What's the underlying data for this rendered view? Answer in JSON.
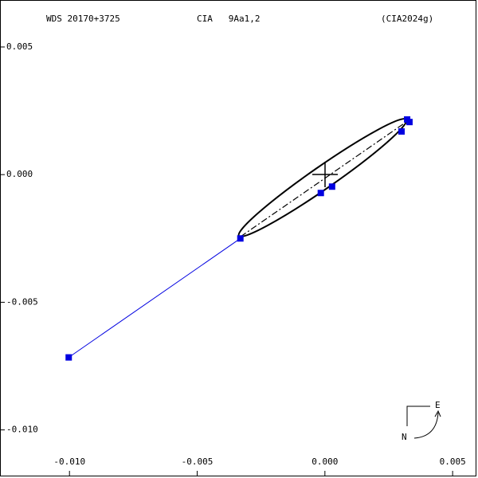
{
  "chart_data": {
    "type": "scatter",
    "title": "WDS 20170+3725",
    "subtitle": "CIA   9Aa1,2",
    "reference": "(CIA2024g)",
    "compass_east": "E",
    "compass_north": "N",
    "color": "#0000e0",
    "x": [
      -0.01003,
      -0.00331,
      -0.00016,
      0.00028,
      0.003,
      0.00322,
      0.00331
    ],
    "values": [
      -0.00716,
      -0.0025,
      -0.00072,
      -0.00047,
      0.00169,
      0.00216,
      0.00206
    ],
    "xlim": [
      -0.01272,
      0.0059
    ],
    "ylim": [
      -0.01179,
      0.00684
    ],
    "xticks": [
      {
        "value": -0.01,
        "label": "-0.010"
      },
      {
        "value": -0.005,
        "label": "-0.005"
      },
      {
        "value": 0,
        "label": "0.000"
      },
      {
        "value": 0.005,
        "label": "0.005"
      }
    ],
    "yticks": [
      {
        "value": 0.005,
        "label": "0.005"
      },
      {
        "value": 0,
        "label": "0.000"
      },
      {
        "value": -0.005,
        "label": "-0.005"
      },
      {
        "value": -0.01,
        "label": "-0.010"
      }
    ]
  }
}
